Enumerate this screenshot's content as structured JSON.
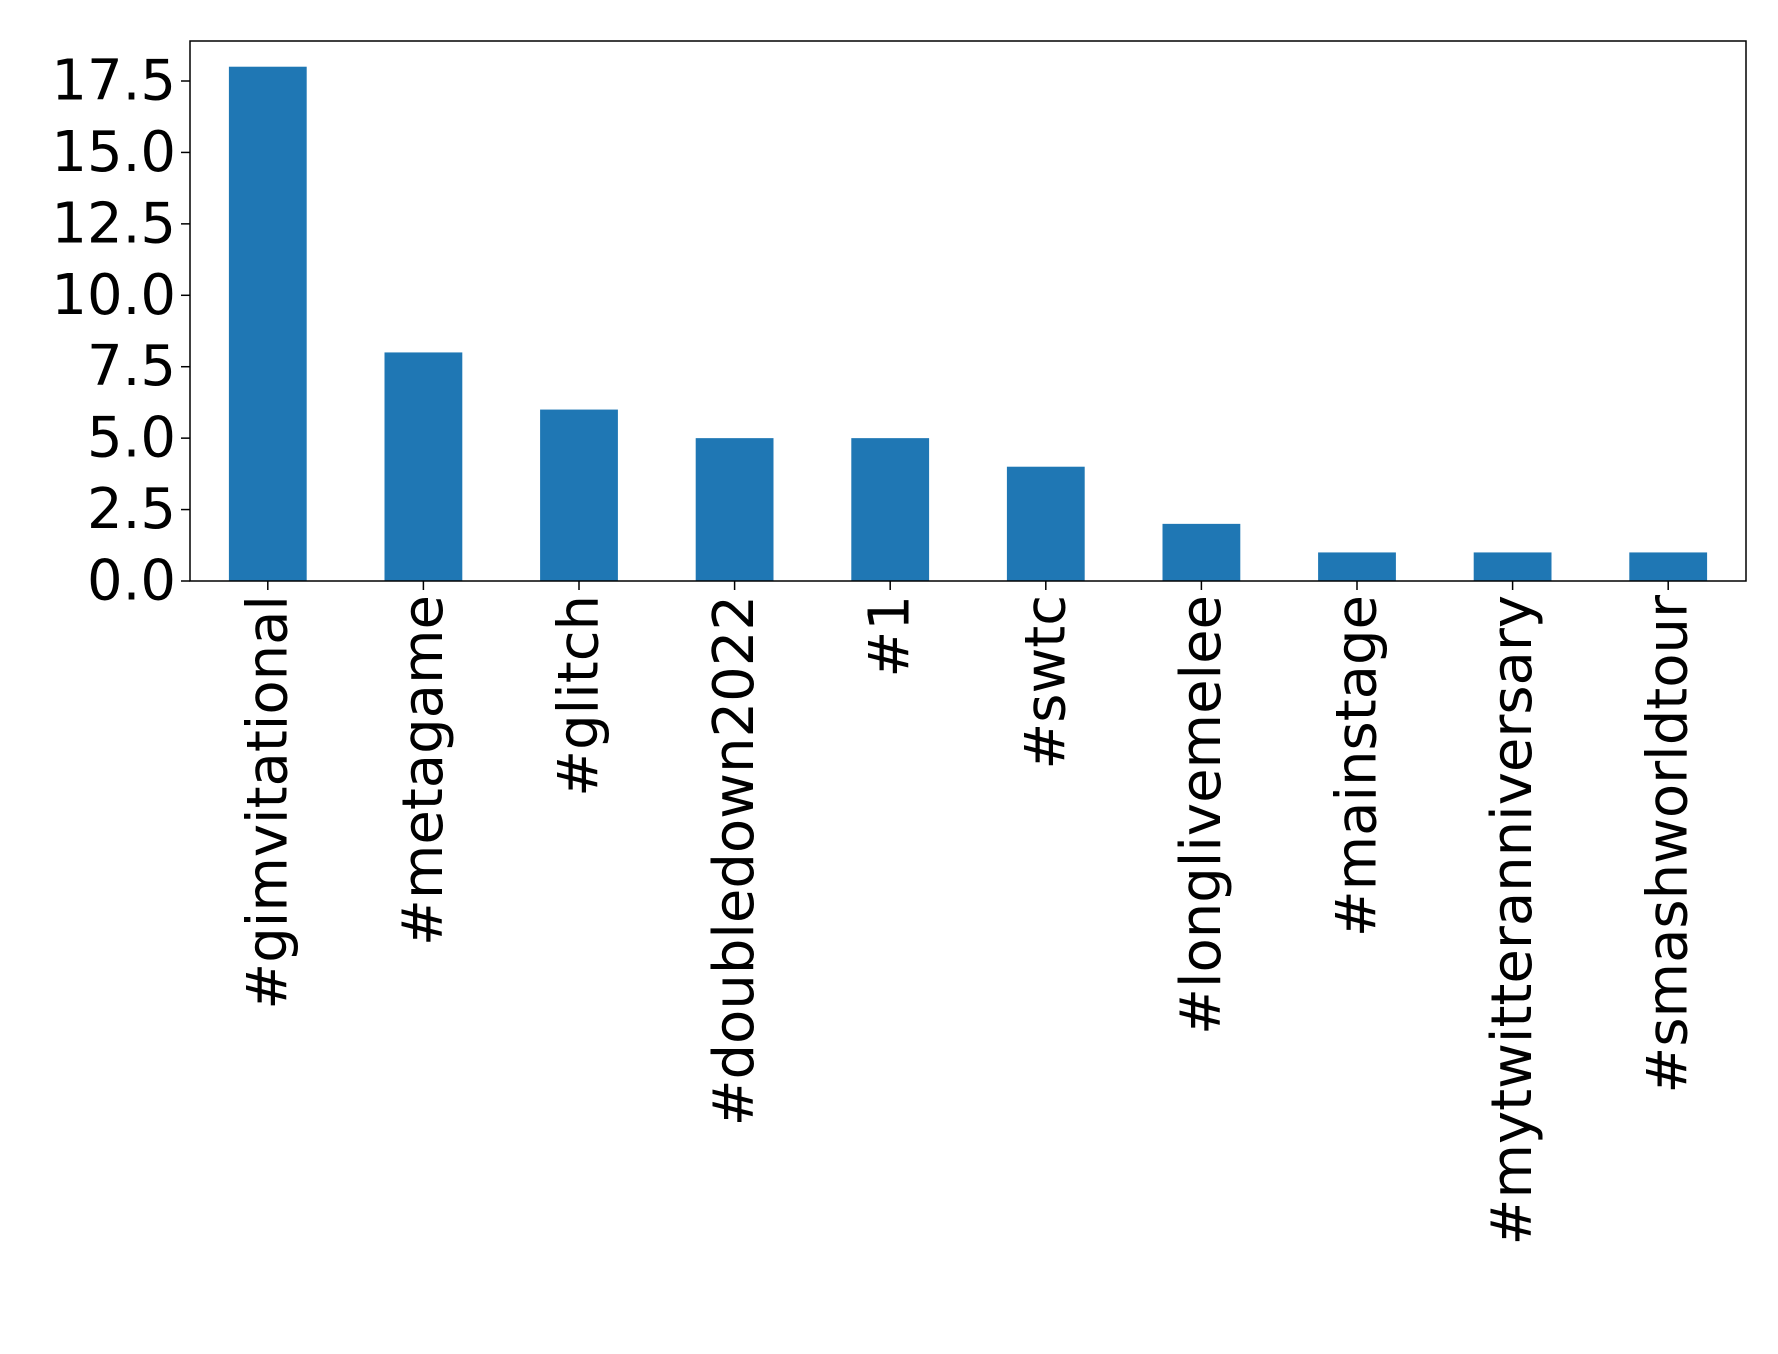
{
  "chart_data": {
    "type": "bar",
    "title": "",
    "xlabel": "",
    "ylabel": "",
    "categories": [
      "#gimvitational",
      "#metagame",
      "#glitch",
      "#doubledown2022",
      "#1",
      "#swtc",
      "#longlivemelee",
      "#mainstage",
      "#mytwitteranniversary",
      "#smashworldtour"
    ],
    "values": [
      18,
      8,
      6,
      5,
      5,
      4,
      2,
      1,
      1,
      1
    ],
    "ylim": [
      0,
      18.9
    ],
    "yticks": [
      0.0,
      2.5,
      5.0,
      7.5,
      10.0,
      12.5,
      15.0,
      17.5
    ],
    "ytick_labels": [
      "0.0",
      "2.5",
      "5.0",
      "7.5",
      "10.0",
      "12.5",
      "15.0",
      "17.5"
    ],
    "grid": false,
    "legend": "none",
    "bar_color": "#1f77b4"
  }
}
